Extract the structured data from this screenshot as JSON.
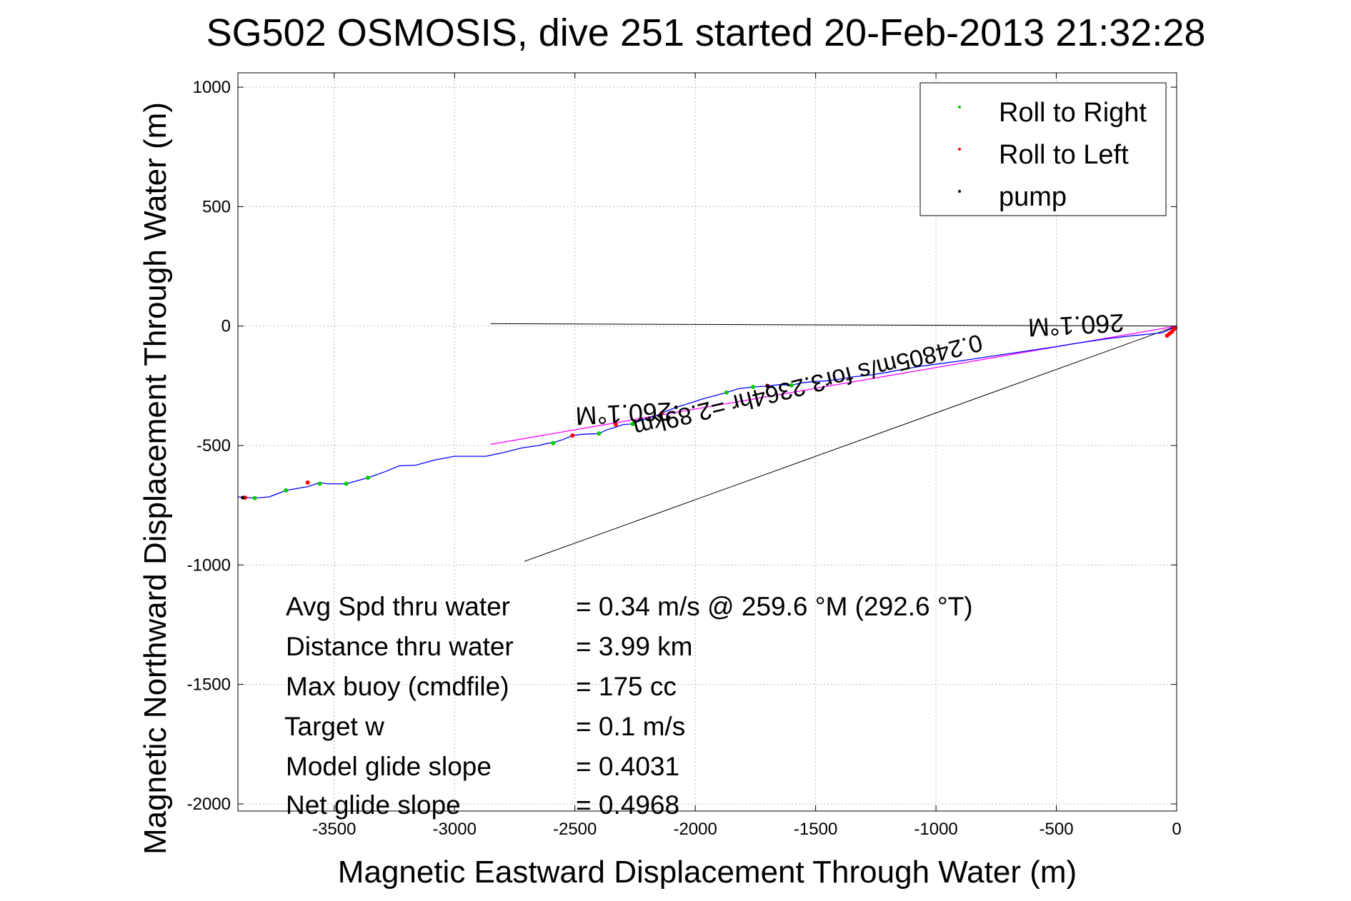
{
  "chart_data": {
    "type": "scatter",
    "title": "SG502 OSMOSIS, dive 251 started 20-Feb-2013 21:32:28",
    "xlabel": "Magnetic Eastward Displacement Through Water (m)",
    "ylabel": "Magnetic Northward Displacement Through Water (m)",
    "xlim": [
      -3900,
      0
    ],
    "ylim": [
      -2030,
      1060
    ],
    "xticks": [
      -3500,
      -3000,
      -2500,
      -2000,
      -1500,
      -1000,
      -500,
      0
    ],
    "yticks": [
      1000,
      500,
      0,
      -500,
      -1000,
      -1500,
      -2000
    ],
    "grid": true,
    "legend": {
      "placement": "top-right",
      "entries": [
        {
          "label": "Roll to Right",
          "color": "#00cc00"
        },
        {
          "label": "Roll to Left",
          "color": "#ff0000"
        },
        {
          "label": "pump",
          "color": "#000000"
        }
      ]
    },
    "track": {
      "name": "",
      "color": "#0000ff",
      "x": [
        -3900,
        -3830,
        -3770,
        -3700,
        -3610,
        -3560,
        -3530,
        -3450,
        -3360,
        -3290,
        -3230,
        -3160,
        -3080,
        -3000,
        -2950,
        -2870,
        -2800,
        -2720,
        -2650,
        -2610,
        -2590,
        -2550,
        -2510,
        -2470,
        -2400,
        -2370,
        -2330,
        -2300,
        -2260,
        -2240,
        -2200,
        -2170,
        -2140,
        -2110,
        -2080,
        -2030,
        -1970,
        -1920,
        -1870,
        -1820,
        -1760,
        -1710,
        -1650,
        -1600,
        -1560,
        -1500,
        -1460,
        -1400,
        -1340,
        -1300,
        -1260,
        -1200,
        -1130,
        -1060,
        -980,
        -900,
        -820,
        -740,
        -660,
        -580,
        -500,
        -430,
        -350,
        -280,
        -200,
        -120,
        -60,
        -30,
        -10,
        0
      ],
      "y": [
        -715,
        -720,
        -715,
        -688,
        -672,
        -655,
        -660,
        -660,
        -635,
        -610,
        -585,
        -582,
        -560,
        -545,
        -545,
        -545,
        -530,
        -510,
        -500,
        -490,
        -488,
        -475,
        -458,
        -453,
        -450,
        -435,
        -423,
        -412,
        -410,
        -400,
        -388,
        -378,
        -365,
        -352,
        -340,
        -325,
        -305,
        -292,
        -278,
        -262,
        -255,
        -252,
        -245,
        -248,
        -238,
        -232,
        -230,
        -222,
        -212,
        -208,
        -203,
        -193,
        -180,
        -168,
        -157,
        -146,
        -134,
        -122,
        -110,
        -98,
        -86,
        -74,
        -62,
        -52,
        -42,
        -34,
        -28,
        -14,
        -6,
        0
      ]
    },
    "roll_right_points": {
      "x": [
        -3830,
        -3700,
        -3560,
        -3450,
        -3360,
        -2590,
        -2400,
        -2260,
        -1870,
        -1760,
        -1600
      ],
      "y": [
        -720,
        -688,
        -660,
        -660,
        -635,
        -490,
        -450,
        -410,
        -278,
        -255,
        -248
      ]
    },
    "roll_left_points": {
      "x": [
        -3870,
        -3610,
        -2510,
        -2330,
        -2140,
        -1700,
        -40,
        -30,
        -20,
        -12,
        -6
      ],
      "y": [
        -718,
        -655,
        -458,
        -412,
        -365,
        -250,
        -40,
        -32,
        -24,
        -14,
        -8
      ]
    },
    "pump_points": {
      "x": [
        -3880,
        -2150,
        -2080,
        -1700
      ],
      "y": [
        -718,
        -375,
        -340,
        -251
      ]
    },
    "heading_line": {
      "color": "#ff00ff",
      "x": [
        -2850,
        0
      ],
      "y": [
        -495,
        0
      ]
    },
    "reference_lines": [
      {
        "color": "#000000",
        "x": [
          -2850,
          0
        ],
        "y": [
          10,
          0
        ]
      },
      {
        "color": "#000000",
        "x": [
          -2710,
          0
        ],
        "y": [
          -985,
          0
        ]
      }
    ],
    "annotations": [
      {
        "text": "260.1°M",
        "x": -2300,
        "y": -330,
        "rotation": 177
      },
      {
        "text": "0.24805m/s for3.2364hr =2.89km",
        "x": -1540,
        "y": -215,
        "rotation": 166
      },
      {
        "text": "260.1°M",
        "x": -420,
        "y": 40,
        "rotation": 177
      }
    ],
    "stats": [
      {
        "label": "Avg Spd thru water",
        "value": "=  0.34 m/s @ 259.6 °M (292.6 °T)"
      },
      {
        "label": "Distance thru water",
        "value": "=  3.99 km"
      },
      {
        "label": "Max buoy (cmdfile)",
        "value": "= 175 cc"
      },
      {
        "label": "Target w",
        "value": "= 0.1 m/s"
      },
      {
        "label": "Model glide slope",
        "value": "= 0.4031"
      },
      {
        "label": "Net glide slope",
        "value": "= 0.4968"
      }
    ]
  }
}
